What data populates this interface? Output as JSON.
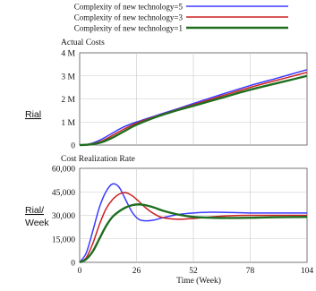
{
  "legend": {
    "entries": [
      {
        "name": "Complexity of new technology=5",
        "color": "#3b3bff"
      },
      {
        "name": "Complexity of new technology=3",
        "color": "#cc2222"
      },
      {
        "name": "Complexity of new technology=1",
        "color": "#1f6e1f"
      }
    ]
  },
  "chart_data": [
    {
      "type": "line",
      "title": "Actual Costs",
      "ylabel": "Rial",
      "xlabel": "",
      "xlim": [
        0,
        104
      ],
      "ylim": [
        0,
        4000000
      ],
      "yticks": [
        0,
        1000000,
        2000000,
        3000000,
        4000000
      ],
      "ytick_labels": [
        "0",
        "1 M",
        "2 M",
        "3 M",
        "4 M"
      ],
      "grid": true,
      "series": [
        {
          "name": "Complexity of new technology=5",
          "color": "#3b3bff",
          "x": [
            0,
            5,
            10,
            15,
            20,
            26,
            35,
            45,
            52,
            65,
            78,
            91,
            104
          ],
          "y": [
            0,
            60000,
            250000,
            520000,
            780000,
            1000000,
            1280000,
            1580000,
            1800000,
            2200000,
            2580000,
            2920000,
            3270000
          ]
        },
        {
          "name": "Complexity of new technology=3",
          "color": "#cc2222",
          "x": [
            0,
            5,
            10,
            15,
            20,
            26,
            35,
            45,
            52,
            65,
            78,
            91,
            104
          ],
          "y": [
            0,
            40000,
            170000,
            420000,
            680000,
            950000,
            1250000,
            1550000,
            1750000,
            2130000,
            2500000,
            2830000,
            3150000
          ]
        },
        {
          "name": "Complexity of new technology=1",
          "color": "#1f6e1f",
          "x": [
            0,
            5,
            10,
            15,
            20,
            26,
            35,
            45,
            52,
            65,
            78,
            91,
            104
          ],
          "y": [
            0,
            25000,
            120000,
            320000,
            580000,
            880000,
            1220000,
            1520000,
            1700000,
            2050000,
            2400000,
            2700000,
            3000000
          ]
        }
      ]
    },
    {
      "type": "line",
      "title": "Cost Realization Rate",
      "ylabel": "Rial/ Week",
      "xlabel": "Time (Week)",
      "xlim": [
        0,
        104
      ],
      "ylim": [
        0,
        60000
      ],
      "xticks": [
        0,
        26,
        52,
        78,
        104
      ],
      "xtick_labels": [
        "0",
        "26",
        "52",
        "78",
        "104"
      ],
      "yticks": [
        0,
        15000,
        30000,
        45000,
        60000
      ],
      "ytick_labels": [
        "0",
        "15,000",
        "30,000",
        "45,000",
        "60,000"
      ],
      "grid": true,
      "series": [
        {
          "name": "Complexity of new technology=5",
          "color": "#3b3bff",
          "x": [
            0,
            3,
            6,
            9,
            12,
            15,
            18,
            21,
            24,
            27,
            30,
            34,
            38,
            45,
            52,
            60,
            70,
            80,
            90,
            104
          ],
          "y": [
            0,
            6000,
            20000,
            35000,
            45000,
            50000,
            48000,
            40000,
            32000,
            27500,
            26500,
            27000,
            28500,
            30500,
            31500,
            32000,
            31800,
            31500,
            31500,
            31500
          ]
        },
        {
          "name": "Complexity of new technology=3",
          "color": "#cc2222",
          "x": [
            0,
            3,
            6,
            9,
            12,
            15,
            18,
            21,
            24,
            27,
            30,
            34,
            38,
            45,
            52,
            60,
            70,
            80,
            90,
            104
          ],
          "y": [
            0,
            3000,
            12000,
            24000,
            34000,
            40000,
            43500,
            44500,
            42500,
            39000,
            35000,
            31000,
            28500,
            27500,
            28000,
            29000,
            29800,
            30000,
            30000,
            30000
          ]
        },
        {
          "name": "Complexity of new technology=1",
          "color": "#1f6e1f",
          "x": [
            0,
            3,
            6,
            9,
            12,
            15,
            18,
            21,
            24,
            27,
            30,
            34,
            38,
            45,
            52,
            60,
            70,
            80,
            90,
            104
          ],
          "y": [
            0,
            2000,
            7000,
            15000,
            23000,
            29000,
            32500,
            35000,
            36500,
            37000,
            36500,
            35000,
            33000,
            30500,
            29000,
            28500,
            28300,
            28500,
            28800,
            29000
          ]
        }
      ]
    }
  ]
}
